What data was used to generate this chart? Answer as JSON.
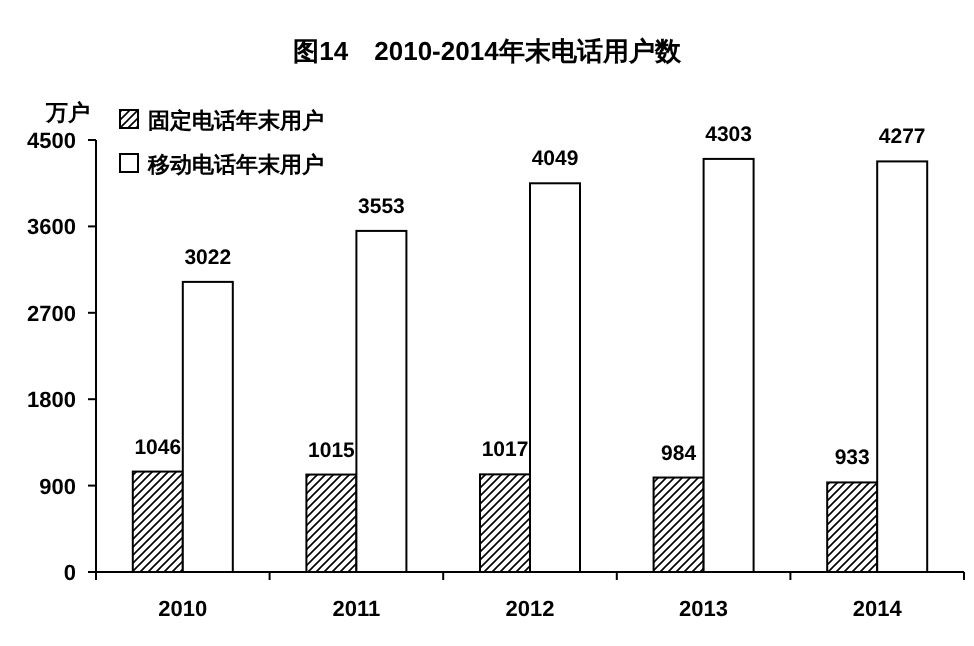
{
  "chart_data": {
    "type": "bar",
    "title": "图14　2010-2014年末电话用户数",
    "ylabel": "万户",
    "categories": [
      "2010",
      "2011",
      "2012",
      "2013",
      "2014"
    ],
    "series": [
      {
        "name": "固定电话年末用户",
        "color": "#000000",
        "values": [
          1046,
          1015,
          1017,
          984,
          933
        ]
      },
      {
        "name": "移动电话年末用户",
        "color": "#ffffff",
        "values": [
          3022,
          3553,
          4049,
          4303,
          4277
        ]
      }
    ],
    "ylim": [
      0,
      4500
    ],
    "yticks": [
      0,
      900,
      1800,
      2700,
      3600,
      4500
    ],
    "data_labels": true,
    "legend": "top left",
    "grid": false
  }
}
